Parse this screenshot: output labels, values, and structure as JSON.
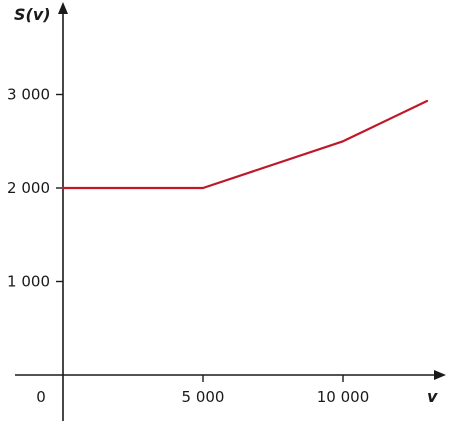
{
  "chart_data": {
    "type": "line",
    "xlabel": "v",
    "ylabel": "S(v)",
    "origin_label": "0",
    "x_ticks": [
      {
        "value": 5000,
        "label": "5 000"
      },
      {
        "value": 10000,
        "label": "10 000"
      }
    ],
    "y_ticks": [
      {
        "value": 1000,
        "label": "1 000"
      },
      {
        "value": 2000,
        "label": "2 000"
      },
      {
        "value": 3000,
        "label": "3 000"
      }
    ],
    "xlim": [
      0,
      13000
    ],
    "ylim": [
      0,
      3900
    ],
    "series": [
      {
        "color": "#c0182a",
        "x": [
          0,
          5000,
          10000,
          13000
        ],
        "y": [
          2000,
          2000,
          2500,
          2930
        ]
      }
    ],
    "grid": false,
    "legend": "none"
  }
}
